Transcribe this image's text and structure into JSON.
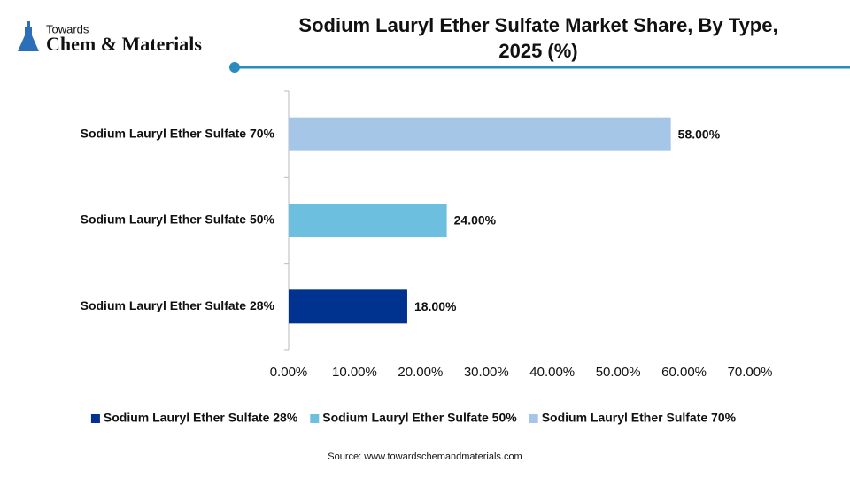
{
  "brand": {
    "top": "Towards",
    "name": "Chem & Materials"
  },
  "chart_data": {
    "type": "hbar",
    "title": "Sodium Lauryl Ether Sulfate Market Share, By Type, 2025 (%)",
    "categories": [
      "Sodium Lauryl Ether Sulfate 28%",
      "Sodium Lauryl Ether Sulfate 50%",
      "Sodium Lauryl Ether Sulfate 70%"
    ],
    "series": [
      {
        "name": "Sodium Lauryl Ether Sulfate 28%",
        "color": "#00338f",
        "values": [
          18,
          null,
          null
        ],
        "value_labels": [
          "18.00%",
          null,
          null
        ]
      },
      {
        "name": "Sodium Lauryl Ether Sulfate 50%",
        "color": "#6dbfe0",
        "values": [
          null,
          24,
          null
        ],
        "value_labels": [
          null,
          "24.00%",
          null
        ]
      },
      {
        "name": "Sodium Lauryl Ether Sulfate 70%",
        "color": "#a5c6e7",
        "values": [
          null,
          null,
          58
        ],
        "value_labels": [
          null,
          null,
          "58.00%"
        ]
      }
    ],
    "xlim": [
      0,
      70
    ],
    "xticks": [
      {
        "value": 0,
        "label": "0.00%"
      },
      {
        "value": 10,
        "label": "10.00%"
      },
      {
        "value": 20,
        "label": "20.00%"
      },
      {
        "value": 30,
        "label": "30.00%"
      },
      {
        "value": 40,
        "label": "40.00%"
      },
      {
        "value": 50,
        "label": "50.00%"
      },
      {
        "value": 60,
        "label": "60.00%"
      },
      {
        "value": 70,
        "label": "70.00%"
      }
    ],
    "grid": false,
    "legend": "bottom"
  },
  "source": "Source: www.towardschemandmaterials.com"
}
